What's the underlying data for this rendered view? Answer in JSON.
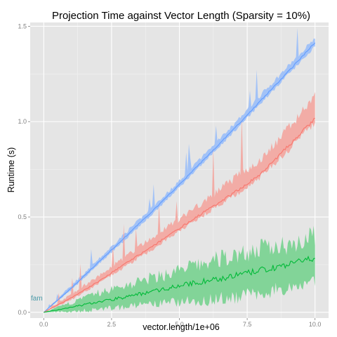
{
  "chart_data": {
    "type": "line",
    "title": "Projection Time against Vector Length (Sparsity = 10%)",
    "xlabel": "vector.length/1e+06",
    "ylabel": "Runtime (s)",
    "xlim": [
      -0.5,
      10.5
    ],
    "ylim": [
      -0.03,
      1.52
    ],
    "x_ticks": [
      0,
      2.5,
      5,
      7.5,
      10
    ],
    "x_tick_labels": [
      "0.0",
      "2.5",
      "5.0",
      "7.5",
      "10.0"
    ],
    "y_ticks": [
      0,
      0.5,
      1,
      1.5
    ],
    "y_tick_labels": [
      "0.0",
      "0.5",
      "1.0",
      "1.5"
    ],
    "grid": true,
    "legend": "none",
    "annotation": "fam",
    "series": [
      {
        "color": "#619CFF",
        "band_color": "#9EC0F8",
        "x": [
          0,
          1,
          2,
          3,
          4,
          5,
          6,
          7,
          8,
          9,
          10
        ],
        "values": [
          0.0,
          0.125,
          0.26,
          0.395,
          0.53,
          0.67,
          0.815,
          0.96,
          1.11,
          1.26,
          1.415
        ],
        "band_lower": [
          0.0,
          0.115,
          0.25,
          0.38,
          0.515,
          0.655,
          0.8,
          0.945,
          1.095,
          1.245,
          1.395
        ],
        "band_upper": [
          0.0,
          0.14,
          0.275,
          0.415,
          0.55,
          0.69,
          0.84,
          0.985,
          1.14,
          1.29,
          1.44
        ]
      },
      {
        "color": "#F8766D",
        "band_color": "#F2A9A2",
        "x": [
          0,
          1,
          2,
          3,
          4,
          5,
          6,
          7,
          8,
          9,
          10
        ],
        "values": [
          0.0,
          0.075,
          0.16,
          0.255,
          0.345,
          0.44,
          0.535,
          0.625,
          0.725,
          0.87,
          1.015
        ],
        "band_lower": [
          0.0,
          0.065,
          0.148,
          0.24,
          0.33,
          0.425,
          0.52,
          0.61,
          0.71,
          0.85,
          0.995
        ],
        "band_upper": [
          0.0,
          0.095,
          0.19,
          0.29,
          0.39,
          0.49,
          0.59,
          0.7,
          0.8,
          0.96,
          1.14
        ]
      },
      {
        "color": "#00BA38",
        "band_color": "#7CD394",
        "x": [
          0,
          1,
          2,
          3,
          4,
          5,
          6,
          7,
          8,
          9,
          10
        ],
        "values": [
          0.0,
          0.025,
          0.055,
          0.08,
          0.11,
          0.14,
          0.165,
          0.19,
          0.22,
          0.25,
          0.285
        ],
        "band_lower": [
          0.0,
          0.005,
          0.015,
          0.03,
          0.04,
          0.055,
          0.065,
          0.08,
          0.1,
          0.13,
          0.175
        ],
        "band_upper": [
          0.0,
          0.05,
          0.1,
          0.14,
          0.18,
          0.22,
          0.26,
          0.3,
          0.33,
          0.36,
          0.4
        ]
      }
    ]
  }
}
